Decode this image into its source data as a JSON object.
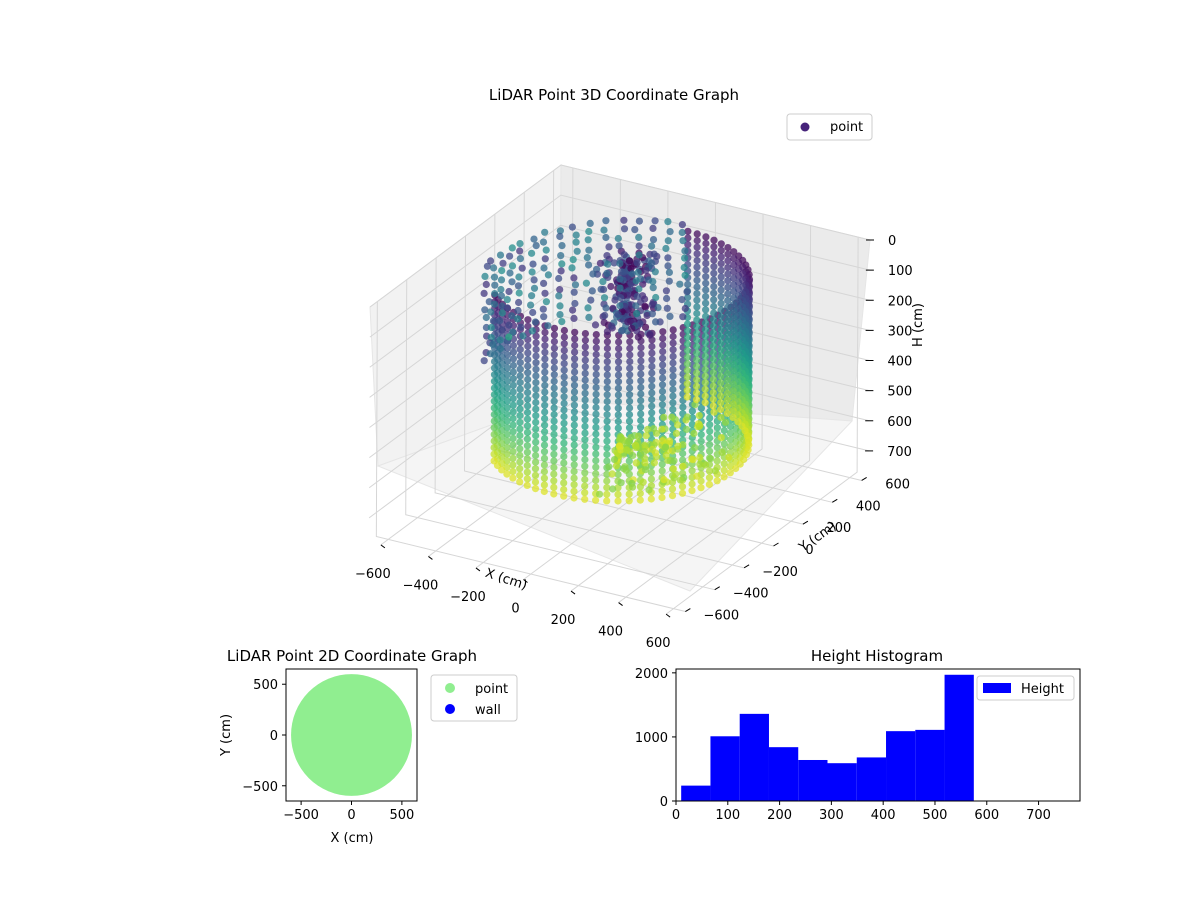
{
  "chart_data": [
    {
      "type": "scatter",
      "projection": "3d",
      "title": "LiDAR Point 3D Coordinate Graph",
      "xlabel": "X (cm)",
      "ylabel": "Y (cm)",
      "zlabel": "H (cm)",
      "xlim": [
        -650,
        650
      ],
      "ylim": [
        -650,
        650
      ],
      "zlim": [
        0,
        780
      ],
      "z_inverted": true,
      "xticks": [
        -600,
        -400,
        -200,
        0,
        200,
        400,
        600
      ],
      "yticks": [
        -600,
        -400,
        -200,
        0,
        200,
        400,
        600
      ],
      "zticks": [
        0,
        100,
        200,
        300,
        400,
        500,
        600,
        700
      ],
      "colormap": "viridis",
      "series": [
        {
          "name": "point",
          "legend_color": "#46237a",
          "description_points": [
            {
              "x": -30,
              "y": 0,
              "h": 580
            },
            {
              "x": 480,
              "y": 120,
              "h": 560
            },
            {
              "x": -480,
              "y": 250,
              "h": 300
            },
            {
              "x": -550,
              "y": -100,
              "h": 250
            },
            {
              "x": 300,
              "y": -450,
              "h": 560
            },
            {
              "x": 450,
              "y": 400,
              "h": 200
            },
            {
              "x": 0,
              "y": 550,
              "h": 100
            }
          ]
        }
      ],
      "grid": true,
      "legend": "top-right"
    },
    {
      "type": "scatter",
      "title": "LiDAR Point 2D Coordinate Graph",
      "xlabel": "X (cm)",
      "ylabel": "Y (cm)",
      "xlim": [
        -650,
        650
      ],
      "ylim": [
        -650,
        650
      ],
      "xticks": [
        -500,
        0,
        500
      ],
      "yticks": [
        -500,
        0,
        500
      ],
      "series": [
        {
          "name": "point",
          "color": "#90ee90",
          "shape": "disk",
          "center": [
            0,
            0
          ],
          "radius": 600
        },
        {
          "name": "wall",
          "color": "#0000ff",
          "values": []
        }
      ],
      "legend": "outside-right"
    },
    {
      "type": "bar",
      "subtype": "histogram",
      "title": "Height Histogram",
      "xlabel": "",
      "ylabel": "",
      "bin_edges": [
        10,
        66.5,
        123,
        179.5,
        236,
        292.5,
        349,
        405.5,
        462,
        518.5,
        575
      ],
      "values": [
        240,
        1010,
        1360,
        840,
        640,
        590,
        680,
        1090,
        1110,
        1970
      ],
      "xlim": [
        0,
        780
      ],
      "ylim": [
        0,
        2060
      ],
      "xticks": [
        0,
        100,
        200,
        300,
        400,
        500,
        600,
        700
      ],
      "yticks": [
        0,
        1000,
        2000
      ],
      "series": [
        {
          "name": "Height",
          "color": "#0000ff"
        }
      ],
      "legend": "top-right"
    }
  ]
}
